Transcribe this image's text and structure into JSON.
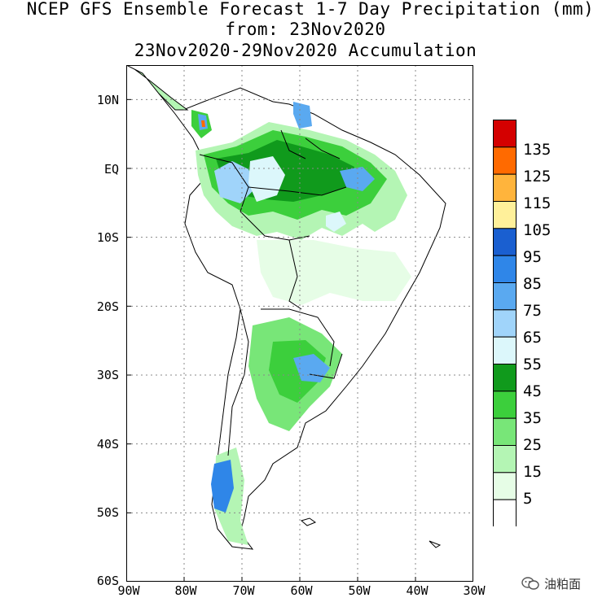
{
  "title": {
    "line1": "NCEP GFS Ensemble Forecast 1-7 Day Precipitation (mm)",
    "line2": "from: 23Nov2020",
    "line3": "23Nov2020-29Nov2020 Accumulation"
  },
  "map": {
    "lat_labels": [
      "10N",
      "EQ",
      "10S",
      "20S",
      "30S",
      "40S",
      "50S",
      "60S"
    ],
    "lon_labels": [
      "90W",
      "80W",
      "70W",
      "60W",
      "50W",
      "40W",
      "30W"
    ],
    "lat_range": [
      -60,
      15
    ],
    "lon_range": [
      -90,
      -30
    ],
    "grid": "dotted",
    "land_color": "#ffffff",
    "coastline_color": "#000000"
  },
  "legend": {
    "labels": [
      "135",
      "125",
      "115",
      "105",
      "95",
      "85",
      "75",
      "65",
      "55",
      "45",
      "35",
      "25",
      "15",
      "5"
    ],
    "colors": [
      "#d40000",
      "#ff6a00",
      "#ffb43c",
      "#fff09a",
      "#1a5fd0",
      "#2f86e8",
      "#5aa9f0",
      "#a0d4fa",
      "#dcf7fb",
      "#109a1c",
      "#3ccf3c",
      "#78e678",
      "#b4f5b4",
      "#e6fde6",
      "#ffffff"
    ]
  },
  "watermark": {
    "text": "油粕面",
    "icon": "wechat-logo-icon"
  }
}
